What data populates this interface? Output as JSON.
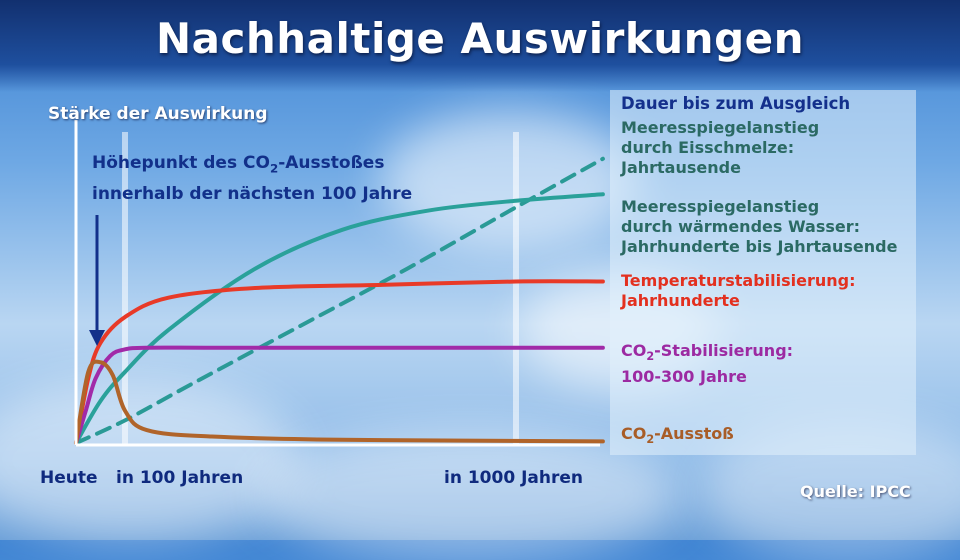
{
  "header": {
    "title": "Nachhaltige Auswirkungen"
  },
  "chart_data": {
    "type": "line",
    "title": "Nachhaltige Auswirkungen",
    "ylabel": "Stärke der Auswirkung",
    "x_ticks": [
      "Heute",
      "in 100 Jahren",
      "in 1000 Jahren"
    ],
    "legend_title": "Dauer bis zum Ausgleich",
    "annotation": "Höhepunkt des CO2-Ausstoßes\ninnerhalb der nächsten 100 Jahre",
    "source": "Quelle: IPCC",
    "ylim": [
      0,
      100
    ],
    "series": [
      {
        "name": "Meeresspiegelanstieg\ndurch Eisschmelze:\nJahrtausende",
        "color": "#2a9a96",
        "style": "dashed",
        "x": [
          0,
          100,
          250,
          500,
          750,
          1000,
          1200
        ],
        "y": [
          0,
          7,
          18,
          36,
          54,
          73,
          88
        ]
      },
      {
        "name": "Meeresspiegelanstieg\ndurch wärmendes Wasser:\nJahrhunderte bis Jahrtausende",
        "color": "#2aa19a",
        "style": "solid",
        "x": [
          0,
          50,
          100,
          200,
          400,
          600,
          800,
          1000,
          1200
        ],
        "y": [
          0,
          13,
          22,
          35,
          54,
          66,
          72,
          75,
          77
        ]
      },
      {
        "name": "Temperaturstabilisierung:\nJahrhunderte",
        "color": "#e83a28",
        "style": "solid",
        "x": [
          0,
          25,
          50,
          100,
          200,
          400,
          700,
          1000,
          1200
        ],
        "y": [
          0,
          20,
          31,
          39,
          45,
          48,
          49,
          50,
          50
        ]
      },
      {
        "name": "CO2-Stabilisierung:\n100-300 Jahre",
        "color": "#a12aa8",
        "style": "solid",
        "x": [
          0,
          20,
          40,
          70,
          100,
          150,
          300,
          600,
          1200
        ],
        "y": [
          0,
          10,
          20,
          27,
          29,
          29.5,
          29.5,
          29.5,
          29.5
        ]
      },
      {
        "name": "CO2-Ausstoß",
        "color": "#b0642a",
        "style": "solid",
        "x": [
          0,
          25,
          50,
          75,
          100,
          150,
          300,
          600,
          1200
        ],
        "y": [
          0,
          22,
          25,
          21,
          10,
          4,
          2,
          1,
          0.5
        ]
      }
    ]
  }
}
